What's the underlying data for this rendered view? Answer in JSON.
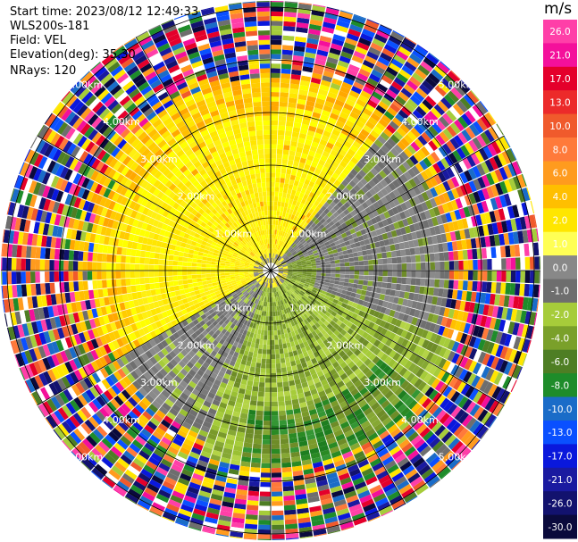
{
  "header": {
    "start_time": "Start time: 2023/08/12 12:49:33",
    "instrument": "WLS200s-181",
    "field": "Field: VEL",
    "elevation": "Elevation(deg): 35.30",
    "nrays": "NRays: 120"
  },
  "colorbar": {
    "unit": "m/s",
    "ticks": [
      "26.0",
      "21.0",
      "17.0",
      "13.0",
      "10.0",
      "8.0",
      "6.0",
      "4.0",
      "2.0",
      "1.0",
      "0.0",
      "-1.0",
      "-2.0",
      "-4.0",
      "-6.0",
      "-8.0",
      "-10.0",
      "-13.0",
      "-17.0",
      "-21.0",
      "-26.0",
      "-30.0"
    ],
    "colors": [
      "#ff3fa8",
      "#f4109b",
      "#e4002b",
      "#ec2a2a",
      "#f05a2c",
      "#ff7a3a",
      "#ff9b1e",
      "#ffbf00",
      "#ffe600",
      "#ffff55",
      "#888888",
      "#6e6e6e",
      "#a6cc3a",
      "#7aa02a",
      "#4e7e24",
      "#1e8c2a",
      "#1a6cc8",
      "#0a50ff",
      "#0a18dc",
      "#1a1aa0",
      "#12126e",
      "#0a0a3c"
    ]
  },
  "chart_data": {
    "type": "ppi",
    "field": "VEL",
    "units": "m/s",
    "rays": 120,
    "range_rings": [
      "1.00km",
      "2.00km",
      "3.00km",
      "4.00km",
      "5.00km"
    ],
    "ring_labels_visible": [
      "1.00km",
      "2.00km",
      "3.00km",
      "4.00km",
      "5.00km"
    ],
    "colorbar_range": [
      -30,
      26
    ],
    "dominant_regions": [
      {
        "sector": "north",
        "range": "0-3km",
        "value_approx": 2.0
      },
      {
        "sector": "west",
        "range": "0-2.5km",
        "value_approx": 2.0
      },
      {
        "sector": "east",
        "range": "0-3km",
        "value_approx": 0.0
      },
      {
        "sector": "south",
        "range": "0-3.5km",
        "value_approx": -2.0
      },
      {
        "sector": "all",
        "range": "4-5km",
        "value_approx": "noise"
      }
    ]
  }
}
